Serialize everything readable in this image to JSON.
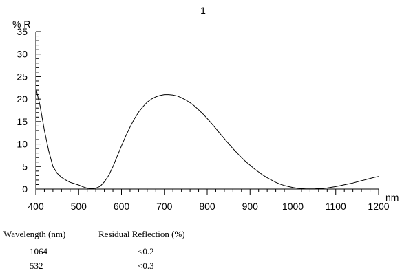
{
  "chart_data": {
    "type": "line",
    "title": "1",
    "ylabel": "% R",
    "xlabel": "nm",
    "xlim": [
      400,
      1200
    ],
    "ylim": [
      0,
      35
    ],
    "x_ticks": [
      400,
      500,
      600,
      700,
      800,
      900,
      1000,
      1100,
      1200
    ],
    "y_ticks": [
      0,
      5,
      10,
      15,
      20,
      25,
      30,
      35
    ],
    "grid": false,
    "series": [
      {
        "color": "#000000",
        "points": [
          [
            400,
            22.5
          ],
          [
            410,
            18.5
          ],
          [
            420,
            13
          ],
          [
            430,
            8.5
          ],
          [
            440,
            5
          ],
          [
            450,
            3.5
          ],
          [
            460,
            2.6
          ],
          [
            470,
            2
          ],
          [
            480,
            1.5
          ],
          [
            490,
            1.2
          ],
          [
            500,
            0.9
          ],
          [
            510,
            0.5
          ],
          [
            520,
            0.2
          ],
          [
            530,
            0.1
          ],
          [
            540,
            0.2
          ],
          [
            550,
            0.6
          ],
          [
            560,
            1.6
          ],
          [
            570,
            3
          ],
          [
            580,
            5
          ],
          [
            590,
            7.3
          ],
          [
            600,
            9.6
          ],
          [
            610,
            11.8
          ],
          [
            620,
            13.8
          ],
          [
            630,
            15.6
          ],
          [
            640,
            17.1
          ],
          [
            650,
            18.3
          ],
          [
            660,
            19.3
          ],
          [
            670,
            20
          ],
          [
            680,
            20.5
          ],
          [
            690,
            20.8
          ],
          [
            700,
            21
          ],
          [
            710,
            21
          ],
          [
            720,
            20.9
          ],
          [
            730,
            20.7
          ],
          [
            740,
            20.3
          ],
          [
            750,
            19.8
          ],
          [
            760,
            19.2
          ],
          [
            770,
            18.5
          ],
          [
            780,
            17.6
          ],
          [
            790,
            16.7
          ],
          [
            800,
            15.7
          ],
          [
            810,
            14.6
          ],
          [
            820,
            13.5
          ],
          [
            830,
            12.3
          ],
          [
            840,
            11.2
          ],
          [
            850,
            10.1
          ],
          [
            860,
            9
          ],
          [
            870,
            8
          ],
          [
            880,
            7
          ],
          [
            890,
            6.1
          ],
          [
            900,
            5.3
          ],
          [
            910,
            4.5
          ],
          [
            920,
            3.8
          ],
          [
            930,
            3.1
          ],
          [
            940,
            2.5
          ],
          [
            950,
            2
          ],
          [
            960,
            1.5
          ],
          [
            970,
            1.1
          ],
          [
            980,
            0.8
          ],
          [
            990,
            0.55
          ],
          [
            1000,
            0.35
          ],
          [
            1010,
            0.2
          ],
          [
            1020,
            0.1
          ],
          [
            1030,
            0.05
          ],
          [
            1040,
            0.05
          ],
          [
            1050,
            0.05
          ],
          [
            1060,
            0.1
          ],
          [
            1070,
            0.15
          ],
          [
            1080,
            0.25
          ],
          [
            1090,
            0.4
          ],
          [
            1100,
            0.55
          ],
          [
            1110,
            0.75
          ],
          [
            1120,
            0.95
          ],
          [
            1130,
            1.15
          ],
          [
            1140,
            1.35
          ],
          [
            1150,
            1.6
          ],
          [
            1160,
            1.85
          ],
          [
            1170,
            2.1
          ],
          [
            1180,
            2.35
          ],
          [
            1190,
            2.6
          ],
          [
            1200,
            2.8
          ]
        ]
      }
    ]
  },
  "table": {
    "headers": [
      "Wavelength (nm)",
      "Residual Reflection (%)"
    ],
    "rows": [
      [
        "1064",
        "<0.2"
      ],
      [
        "532",
        "<0.3"
      ]
    ]
  }
}
